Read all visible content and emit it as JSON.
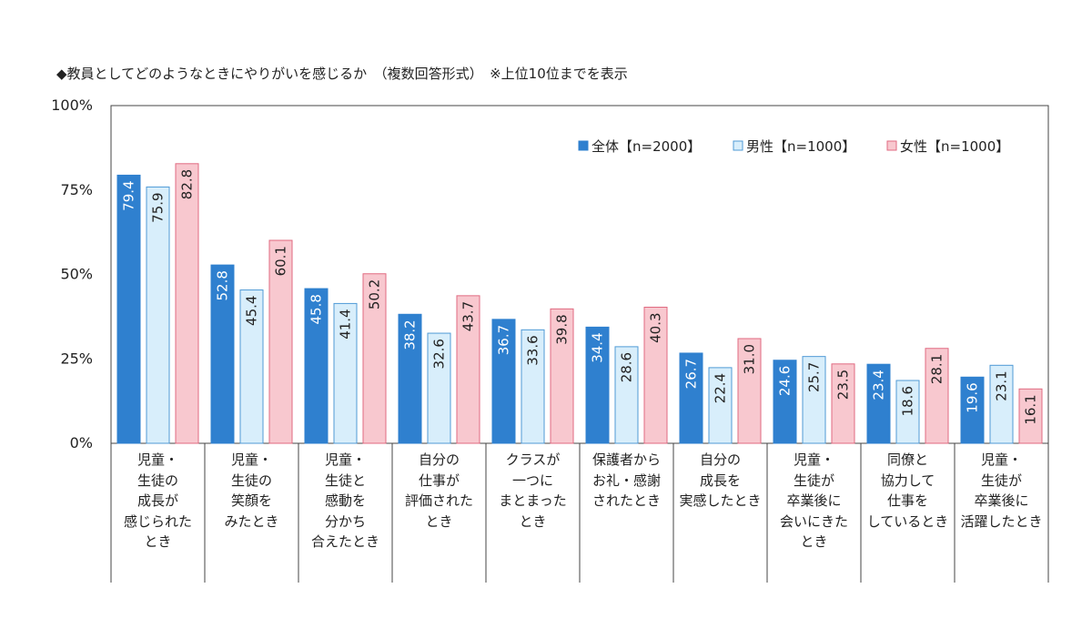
{
  "title": "◆教員としてどのようなときにやりがいを感じるか　（複数回答形式）　※上位10位までを表示",
  "colors": {
    "all": "#2f80cf",
    "male": "#d8eefb",
    "female": "#f8c8cf",
    "male_border": "#4f9ad6",
    "female_border": "#e06a80"
  },
  "chart_data": {
    "type": "bar",
    "title": "◆教員としてどのようなときにやりがいを感じるか　（複数回答形式）　※上位10位までを表示",
    "categories": [
      "児童・\n生徒の\n成長が\n感じられた\nとき",
      "児童・\n生徒の\n笑顔を\nみたとき",
      "児童・\n生徒と\n感動を\n分かち\n合えたとき",
      "自分の\n仕事が\n評価された\nとき",
      "クラスが\n一つに\nまとまった\nとき",
      "保護者から\nお礼・感謝\nされたとき",
      "自分の\n成長を\n実感したとき",
      "児童・\n生徒が\n卒業後に\n会いにきた\nとき",
      "同僚と\n協力して\n仕事を\nしているとき",
      "児童・\n生徒が\n卒業後に\n活躍したとき"
    ],
    "series": [
      {
        "name": "全体【n=2000】",
        "values": [
          79.4,
          52.8,
          45.8,
          38.2,
          36.7,
          34.4,
          26.7,
          24.6,
          23.4,
          19.6
        ]
      },
      {
        "name": "男性【n=1000】",
        "values": [
          75.9,
          45.4,
          41.4,
          32.6,
          33.6,
          28.6,
          22.4,
          25.7,
          18.6,
          23.1
        ]
      },
      {
        "name": "女性【n=1000】",
        "values": [
          82.8,
          60.1,
          50.2,
          43.7,
          39.8,
          40.3,
          31.0,
          23.5,
          28.1,
          16.1
        ]
      }
    ],
    "yticks": [
      "0%",
      "25%",
      "50%",
      "75%",
      "100%"
    ],
    "ylim": [
      0,
      100
    ],
    "legend": "top-right",
    "grid": false
  }
}
